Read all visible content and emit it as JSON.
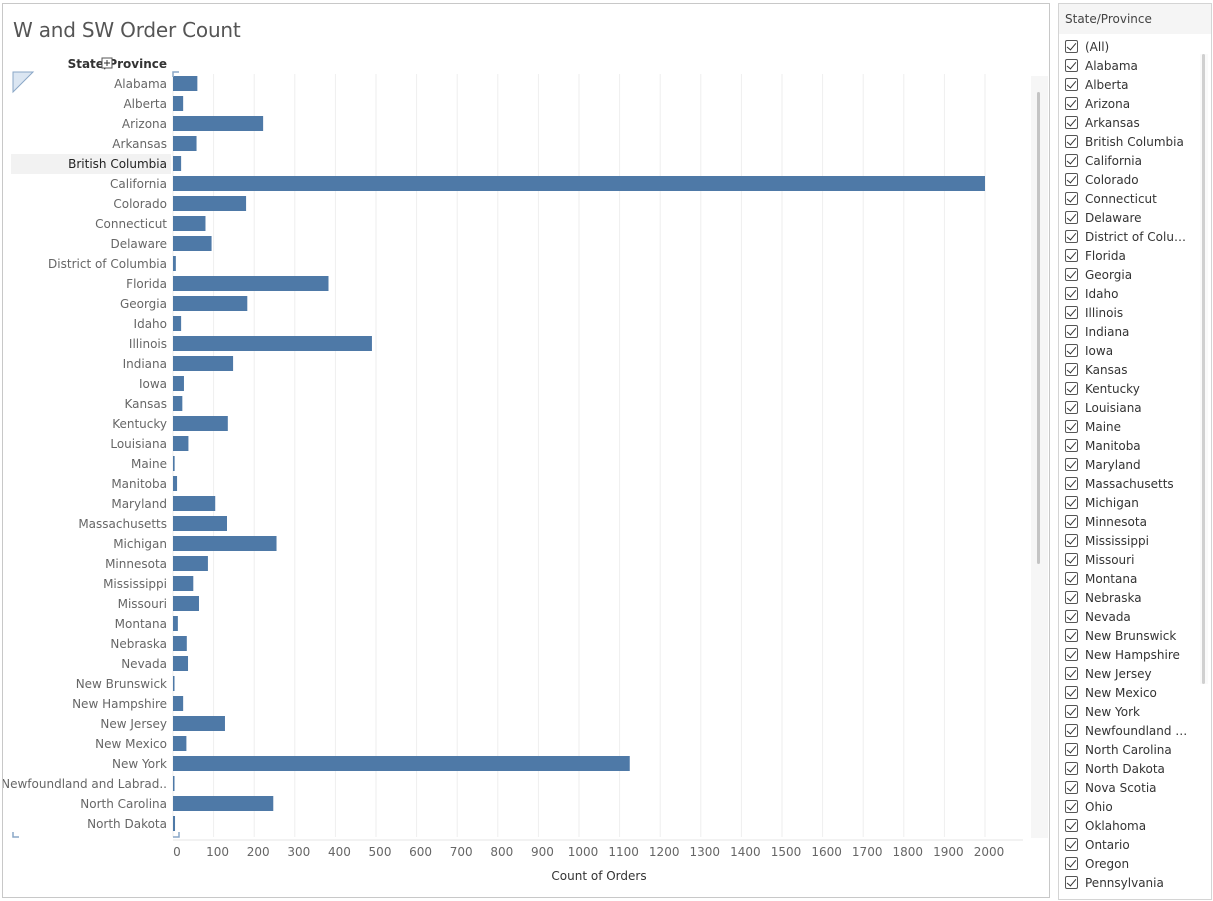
{
  "worksheet": {
    "title": "W and SW Order Count",
    "row_header": "State/Province"
  },
  "filter_card": {
    "title": "State/Province",
    "items": [
      "(All)",
      "Alabama",
      "Alberta",
      "Arizona",
      "Arkansas",
      "British Columbia",
      "California",
      "Colorado",
      "Connecticut",
      "Delaware",
      "District of Colum...",
      "Florida",
      "Georgia",
      "Idaho",
      "Illinois",
      "Indiana",
      "Iowa",
      "Kansas",
      "Kentucky",
      "Louisiana",
      "Maine",
      "Manitoba",
      "Maryland",
      "Massachusetts",
      "Michigan",
      "Minnesota",
      "Mississippi",
      "Missouri",
      "Montana",
      "Nebraska",
      "Nevada",
      "New Brunswick",
      "New Hampshire",
      "New Jersey",
      "New Mexico",
      "New York",
      "Newfoundland a...",
      "North Carolina",
      "North Dakota",
      "Nova Scotia",
      "Ohio",
      "Oklahoma",
      "Ontario",
      "Oregon",
      "Pennsylvania"
    ]
  },
  "chart_data": {
    "type": "bar",
    "orientation": "horizontal",
    "xlabel": "Count of Orders",
    "ylabel": "State/Province",
    "xlim": [
      0,
      2000
    ],
    "xticks": [
      0,
      100,
      200,
      300,
      400,
      500,
      600,
      700,
      800,
      900,
      1000,
      1100,
      1200,
      1300,
      1400,
      1500,
      1600,
      1700,
      1800,
      1900,
      2000
    ],
    "grid": true,
    "bar_color": "#4e79a7",
    "highlighted_category": "British Columbia",
    "categories": [
      "Alabama",
      "Alberta",
      "Arizona",
      "Arkansas",
      "British Columbia",
      "California",
      "Colorado",
      "Connecticut",
      "Delaware",
      "District of Columbia",
      "Florida",
      "Georgia",
      "Idaho",
      "Illinois",
      "Indiana",
      "Iowa",
      "Kansas",
      "Kentucky",
      "Louisiana",
      "Maine",
      "Manitoba",
      "Maryland",
      "Massachusetts",
      "Michigan",
      "Minnesota",
      "Mississippi",
      "Missouri",
      "Montana",
      "Nebraska",
      "Nevada",
      "New Brunswick",
      "New Hampshire",
      "New Jersey",
      "New Mexico",
      "New York",
      "Newfoundland and Labrad..",
      "North Carolina",
      "North Dakota"
    ],
    "values": [
      60,
      25,
      222,
      58,
      20,
      2000,
      180,
      80,
      95,
      7,
      383,
      183,
      20,
      490,
      148,
      27,
      23,
      135,
      38,
      4,
      10,
      104,
      133,
      255,
      86,
      50,
      64,
      12,
      34,
      37,
      3,
      25,
      128,
      33,
      1125,
      2,
      247,
      5
    ]
  }
}
